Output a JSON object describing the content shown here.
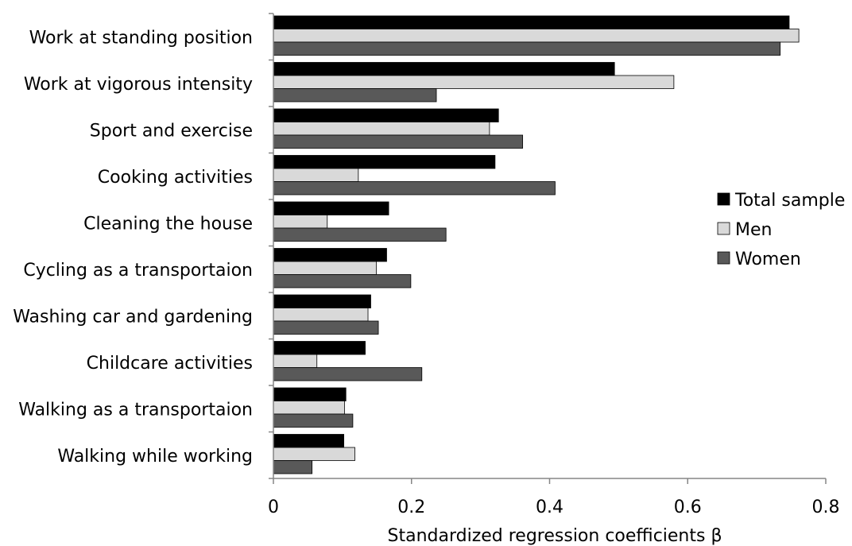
{
  "chart_data": {
    "type": "bar",
    "orientation": "horizontal",
    "title": "",
    "xlabel": "Standardized regression coefficients   β",
    "ylabel": "",
    "xlim": [
      0,
      0.8
    ],
    "xticks": [
      0,
      0.2,
      0.4,
      0.6,
      0.8
    ],
    "xtick_labels": [
      "0",
      "0.2",
      "0.4",
      "0.6",
      "0.8"
    ],
    "grid": false,
    "legend_position": "right",
    "categories": [
      "Work at standing position",
      "Work at vigorous intensity",
      "Sport and exercise",
      "Cooking activities",
      "Cleaning the house",
      "Cycling as a transportaion",
      "Washing car and gardening",
      "Childcare activities",
      "Walking as a transportaion",
      "Walking while working"
    ],
    "series": [
      {
        "name": "Total sample",
        "color": "#000000",
        "values": [
          0.747,
          0.494,
          0.326,
          0.321,
          0.167,
          0.164,
          0.141,
          0.133,
          0.105,
          0.102
        ]
      },
      {
        "name": "Men",
        "color": "#d9d9d9",
        "values": [
          0.761,
          0.58,
          0.313,
          0.123,
          0.078,
          0.149,
          0.137,
          0.063,
          0.103,
          0.118
        ]
      },
      {
        "name": "Women",
        "color": "#595959",
        "values": [
          0.734,
          0.236,
          0.361,
          0.408,
          0.25,
          0.199,
          0.152,
          0.215,
          0.115,
          0.056
        ]
      }
    ]
  }
}
